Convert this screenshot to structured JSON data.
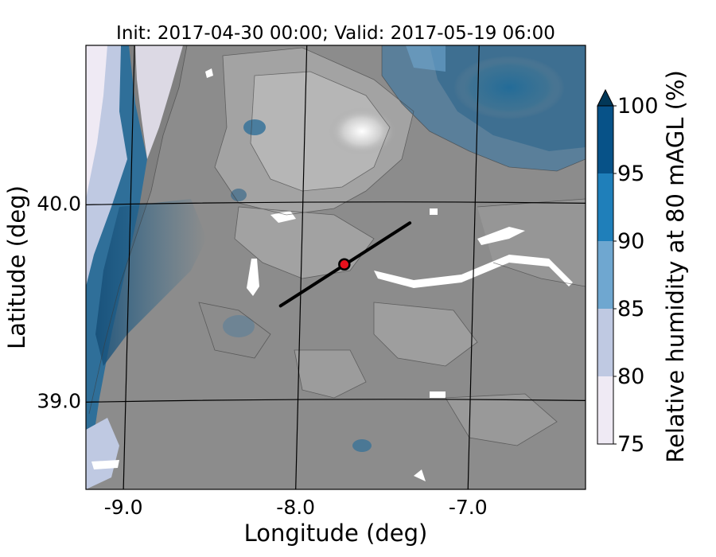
{
  "chart_data": {
    "type": "heatmap",
    "title": "Init: 2017-04-30 00:00; Valid: 2017-05-19 06:00",
    "xlabel": "Longitude (deg)",
    "ylabel": "Latitude (deg)",
    "xlim": [
      -9.25,
      -6.35
    ],
    "ylim": [
      38.55,
      40.8
    ],
    "x_ticks": [
      {
        "value": -9.0,
        "label": "-9.0"
      },
      {
        "value": -8.0,
        "label": "-8.0"
      },
      {
        "value": -7.0,
        "label": "-7.0"
      }
    ],
    "y_ticks": [
      {
        "value": 40.0,
        "label": "40.0"
      },
      {
        "value": 39.0,
        "label": "39.0"
      }
    ],
    "colorbar": {
      "label": "Relative humidity at 80 mAGL (%)",
      "levels": [
        75,
        80,
        85,
        90,
        95,
        100
      ],
      "tick_labels": [
        "75",
        "80",
        "85",
        "90",
        "95",
        "100"
      ],
      "colors": [
        "#efeaf4",
        "#bfc9e2",
        "#6fa7d0",
        "#1f7fba",
        "#075288"
      ],
      "extend": "max",
      "extend_color": "#023858"
    },
    "below_range_color": "#8c8c8c",
    "transect": {
      "start": [
        -8.12,
        39.48
      ],
      "end": [
        -7.37,
        39.9
      ],
      "color": "#000000"
    },
    "marker": {
      "lon": -7.75,
      "lat": 39.69,
      "color": "#e8101c"
    }
  }
}
